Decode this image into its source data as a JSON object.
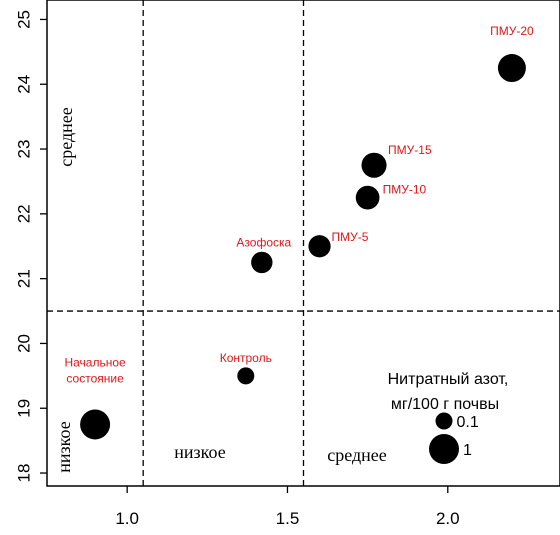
{
  "chart_data": {
    "type": "scatter",
    "xlim": [
      0.75,
      2.35
    ],
    "ylim": [
      17.8,
      25.3
    ],
    "x_ticks": [
      {
        "value": 1.0,
        "label": "1.0"
      },
      {
        "value": 1.5,
        "label": "1.5"
      },
      {
        "value": 2.0,
        "label": "2.0"
      }
    ],
    "y_ticks": [
      {
        "value": 18,
        "label": "18"
      },
      {
        "value": 19,
        "label": "19"
      },
      {
        "value": 20,
        "label": "20"
      },
      {
        "value": 21,
        "label": "21"
      },
      {
        "value": 22,
        "label": "22"
      },
      {
        "value": 23,
        "label": "23"
      },
      {
        "value": 24,
        "label": "24"
      },
      {
        "value": 25,
        "label": "25"
      }
    ],
    "thresholds": {
      "x": [
        1.05,
        1.55
      ],
      "y": [
        20.5
      ]
    },
    "points": [
      {
        "x": 0.9,
        "y": 18.75,
        "size": 1.0,
        "label": "Начальное состояние",
        "label_lines": [
          "Начальное",
          "состояние"
        ]
      },
      {
        "x": 1.37,
        "y": 19.5,
        "size": 0.1,
        "label": "Контроль",
        "label_lines": [
          "Контроль"
        ]
      },
      {
        "x": 1.42,
        "y": 21.25,
        "size": 0.3,
        "label": "Азофоска",
        "label_lines": [
          "Азофоска"
        ]
      },
      {
        "x": 1.6,
        "y": 21.5,
        "size": 0.35,
        "label": "ПМУ-5",
        "label_lines": [
          "ПМУ-5"
        ]
      },
      {
        "x": 1.75,
        "y": 22.25,
        "size": 0.45,
        "label": "ПМУ-10",
        "label_lines": [
          "ПМУ-10"
        ]
      },
      {
        "x": 1.77,
        "y": 22.75,
        "size": 0.55,
        "label": "ПМУ-15",
        "label_lines": [
          "ПМУ-15"
        ]
      },
      {
        "x": 2.2,
        "y": 24.25,
        "size": 0.8,
        "label": "ПМУ-20",
        "label_lines": [
          "ПМУ-20"
        ]
      }
    ],
    "zone_labels": {
      "y_upper": "среднее",
      "y_lower": "низкое",
      "x_low": "низкое",
      "x_mid": "среднее"
    },
    "legend": {
      "title_lines": [
        "Нитратный азот,",
        "мг/100 г почвы"
      ],
      "items": [
        {
          "size": 0.1,
          "label": "0.1"
        },
        {
          "size": 1.0,
          "label": "1"
        }
      ],
      "position": "bottom-right"
    },
    "colors": {
      "points": "#000000",
      "labels": "#e0161a"
    }
  }
}
